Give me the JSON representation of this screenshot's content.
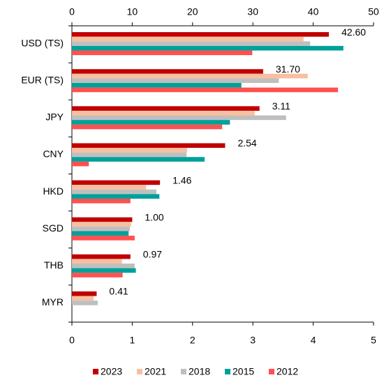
{
  "chart_data": {
    "type": "hbar",
    "categories": [
      "USD (TS)",
      "EUR (TS)",
      "JPY",
      "CNY",
      "HKD",
      "SGD",
      "THB",
      "MYR"
    ],
    "category_axes": [
      "x2",
      "x2",
      "x",
      "x",
      "x",
      "x",
      "x",
      "x"
    ],
    "series": [
      {
        "name": "2023",
        "color": "#c00000",
        "values": [
          42.6,
          31.7,
          3.11,
          2.54,
          1.46,
          1.0,
          0.97,
          0.41
        ],
        "value_labels": [
          "42.60",
          "31.70",
          "3.11",
          "2.54",
          "1.46",
          "1.00",
          "0.97",
          "0.41"
        ]
      },
      {
        "name": "2021",
        "color": "#f8c0a0",
        "values": [
          38.4,
          39.1,
          3.03,
          1.91,
          1.23,
          0.98,
          0.83,
          0.36
        ]
      },
      {
        "name": "2018",
        "color": "#bfbfbf",
        "values": [
          39.5,
          34.3,
          3.55,
          1.9,
          1.4,
          0.96,
          1.04,
          0.43
        ]
      },
      {
        "name": "2015",
        "color": "#00a09a",
        "values": [
          45.0,
          28.1,
          2.62,
          2.2,
          1.45,
          0.94,
          1.06,
          null
        ]
      },
      {
        "name": "2012",
        "color": "#ff5050",
        "values": [
          29.9,
          44.1,
          2.49,
          0.28,
          0.97,
          1.04,
          0.84,
          null
        ]
      }
    ],
    "xlim": [
      0,
      5
    ],
    "xticks": [
      0,
      1,
      2,
      3,
      4,
      5
    ],
    "x2lim": [
      0,
      50
    ],
    "x2ticks": [
      0,
      10,
      20,
      30,
      40,
      50
    ],
    "legend": "bottom"
  }
}
